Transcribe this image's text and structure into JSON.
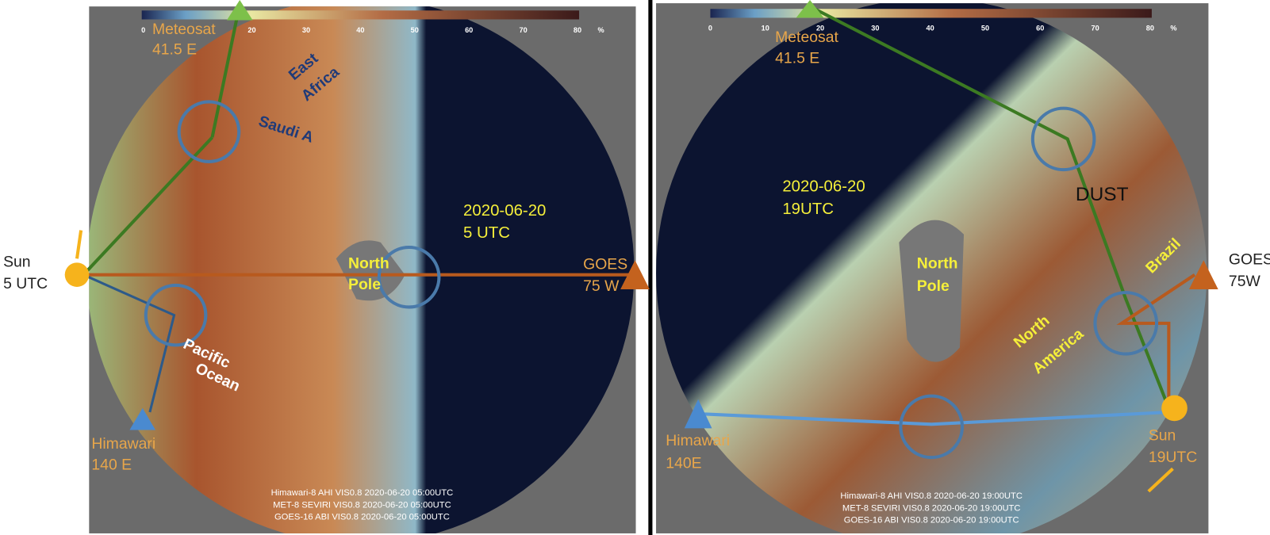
{
  "panels": [
    {
      "colorbar": {
        "ticks": [
          0,
          20,
          30,
          40,
          50,
          60,
          70,
          80
        ],
        "unit": "%"
      },
      "meteosat": {
        "name": "Meteosat",
        "lon": "41.5 E"
      },
      "regions": {
        "east": "East",
        "africa": "Africa",
        "saudi": "Saudi A",
        "north": "North",
        "pole": "Pole",
        "pacific": "Pacific",
        "ocean": "Ocean"
      },
      "date": "2020-06-20",
      "time": "5 UTC",
      "goes": {
        "name": "GOES",
        "lon": "75 W"
      },
      "sun": {
        "name": "Sun",
        "time": "5 UTC"
      },
      "himawari": {
        "name": "Himawari",
        "lon": "140 E"
      },
      "footer": [
        "Himawari-8 AHI VIS0.8 2020-06-20 05:00UTC",
        "MET-8 SEVIRI VIS0.8 2020-06-20 05:00UTC",
        "GOES-16 ABI VIS0.8 2020-06-20 05:00UTC"
      ]
    },
    {
      "colorbar": {
        "ticks": [
          0,
          10,
          20,
          30,
          40,
          50,
          60,
          70,
          80
        ],
        "unit": "%"
      },
      "meteosat": {
        "name": "Meteosat",
        "lon": "41.5 E"
      },
      "regions": {
        "dust": "DUST",
        "north": "North",
        "pole": "Pole",
        "brazil": "Brazil",
        "north2": "North",
        "america": "America"
      },
      "date": "2020-06-20",
      "time": "19UTC",
      "goes": {
        "name": "GOES",
        "lon": "75W"
      },
      "sun": {
        "name": "Sun",
        "time": "19UTC"
      },
      "himawari": {
        "name": "Himawari",
        "lon": "140E"
      },
      "footer": [
        "Himawari-8 AHI VIS0.8 2020-06-20 19:00UTC",
        "MET-8 SEVIRI VIS0.8 2020-06-20 19:00UTC",
        "GOES-16 ABI VIS0.8 2020-06-20 19:00UTC"
      ]
    }
  ]
}
